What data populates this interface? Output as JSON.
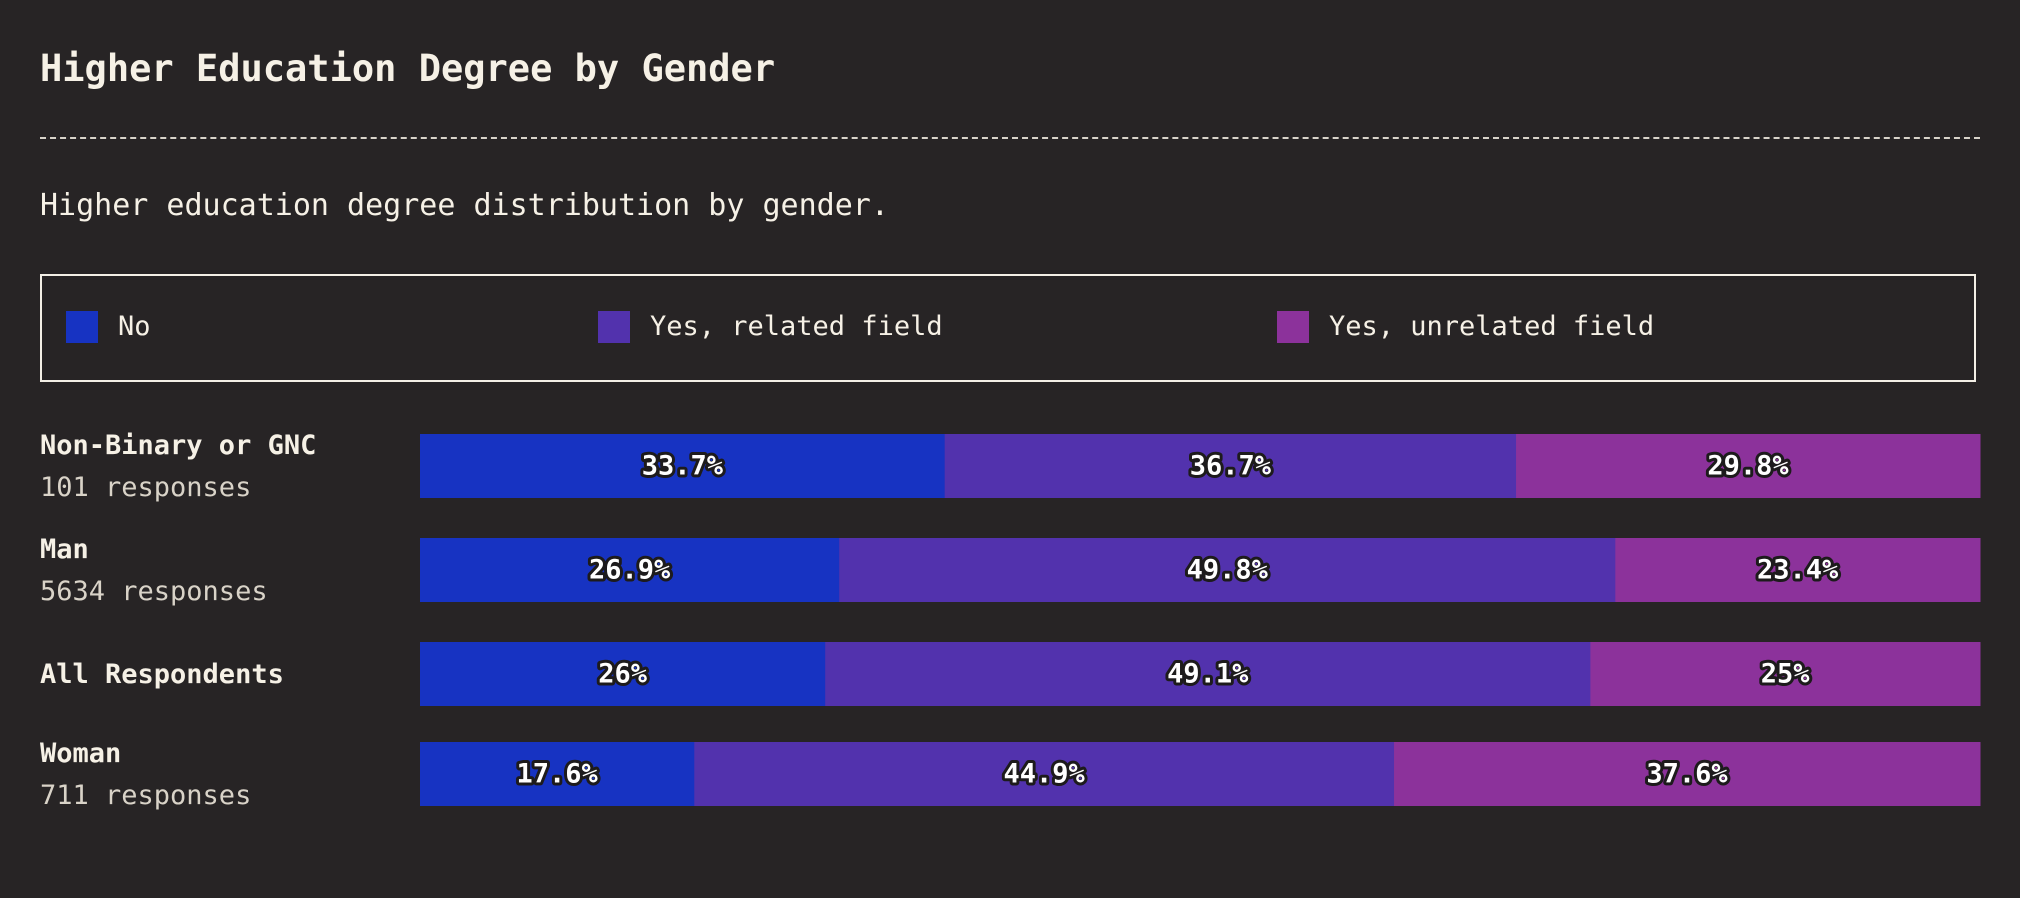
{
  "title": "Higher Education Degree by Gender",
  "subtitle": "Higher education degree distribution by gender.",
  "legend": [
    {
      "label": "No",
      "color": "#1733c2"
    },
    {
      "label": "Yes, related field",
      "color": "#5232ad"
    },
    {
      "label": "Yes, unrelated field",
      "color": "#8c329b"
    }
  ],
  "chart_data": {
    "type": "bar",
    "orientation": "horizontal",
    "stacked": true,
    "xlim": [
      0,
      100
    ],
    "categories": [
      "Non-Binary or GNC",
      "Man",
      "All Respondents",
      "Woman"
    ],
    "responses": [
      "101 responses",
      "5634 responses",
      "",
      "711 responses"
    ],
    "series": [
      {
        "name": "No",
        "color": "#1733c2",
        "values": [
          33.7,
          26.9,
          26,
          17.6
        ],
        "labels": [
          "33.7%",
          "26.9%",
          "26%",
          "17.6%"
        ]
      },
      {
        "name": "Yes, related field",
        "color": "#5232ad",
        "values": [
          36.7,
          49.8,
          49.1,
          44.9
        ],
        "labels": [
          "36.7%",
          "49.8%",
          "49.1%",
          "44.9%"
        ]
      },
      {
        "name": "Yes, unrelated field",
        "color": "#8c329b",
        "values": [
          29.8,
          23.4,
          25,
          37.6
        ],
        "labels": [
          "29.8%",
          "23.4%",
          "25%",
          "37.6%"
        ]
      }
    ],
    "legend_position": "top"
  }
}
